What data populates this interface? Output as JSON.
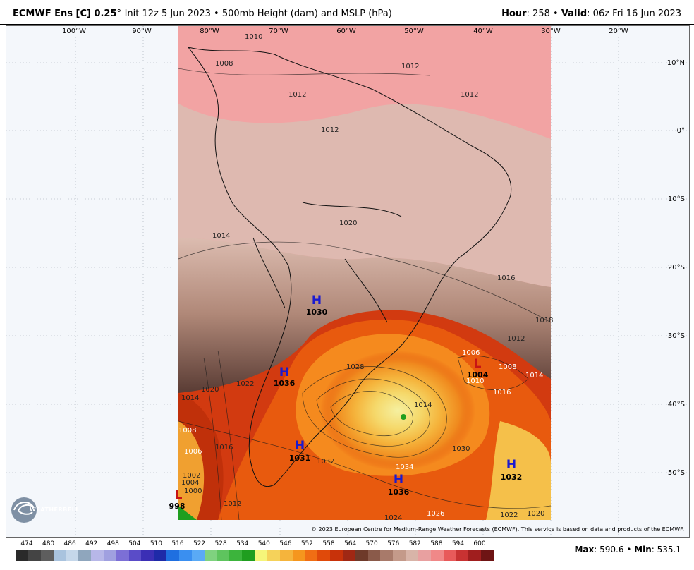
{
  "header": {
    "model": "ECMWF Ens [C] 0.25",
    "init": "Init 12z 5 Jun 2023 • 500mb Height (dam) and MSLP (hPa)",
    "hour_label": "Hour",
    "hour_value": ": 258 • ",
    "valid_label": "Valid",
    "valid_value": ": 06z Fri 16 Jun 2023"
  },
  "map": {
    "lon_labels": [
      "100°W",
      "90°W",
      "80°W",
      "70°W",
      "60°W",
      "50°W",
      "40°W",
      "30°W",
      "20°W"
    ],
    "lat_labels": [
      "10°N",
      "0°",
      "10°S",
      "20°S",
      "30°S",
      "40°S",
      "50°S"
    ],
    "pressure_centers": [
      {
        "letter": "H",
        "value": "1030"
      },
      {
        "letter": "H",
        "value": "1036"
      },
      {
        "letter": "H",
        "value": "1031"
      },
      {
        "letter": "H",
        "value": "1036"
      },
      {
        "letter": "H",
        "value": "1032"
      },
      {
        "letter": "L",
        "value": "1004"
      },
      {
        "letter": "L",
        "value": "998"
      }
    ],
    "contour_labels": [
      "1010",
      "1008",
      "1012",
      "1012",
      "1012",
      "1012",
      "1014",
      "1020",
      "1016",
      "1018",
      "1012",
      "1006",
      "1008",
      "1014",
      "1010",
      "1016",
      "1014",
      "1022",
      "1020",
      "1014",
      "1008",
      "1006",
      "1016",
      "1032",
      "1028",
      "1030",
      "1034",
      "1024",
      "1026",
      "1022",
      "1020",
      "1012",
      "1004",
      "1002",
      "1000"
    ]
  },
  "copyright": "© 2023 European Centre for Medium-Range Weather Forecasts (ECMWF). This service is based on data and products of the ECMWF.",
  "logo_text": "WEATHERBELL",
  "legend": {
    "labels": [
      "474",
      "480",
      "486",
      "492",
      "498",
      "504",
      "510",
      "516",
      "522",
      "528",
      "534",
      "540",
      "546",
      "552",
      "558",
      "564",
      "570",
      "576",
      "582",
      "588",
      "594",
      "600"
    ],
    "colors": [
      "#2a2a2a",
      "#444444",
      "#5e5e5e",
      "#a9c3de",
      "#c5d7ea",
      "#8fa6bd",
      "#b7b7e8",
      "#a0a0e0",
      "#7c6fd6",
      "#5a4cc8",
      "#3b2fb5",
      "#1e2aa8",
      "#1f6fe0",
      "#3a8ff0",
      "#5aaaf5",
      "#7fd27f",
      "#5ec45e",
      "#3cb43c",
      "#1f9e1f",
      "#f5f57a",
      "#f5d25a",
      "#f5b43c",
      "#f5961e",
      "#f06e14",
      "#e04a0a",
      "#c8320a",
      "#a02814",
      "#6e3a2a",
      "#8a5a4a",
      "#a87a6a",
      "#c49a8a",
      "#d8b4a8",
      "#e8a0a0",
      "#f08888",
      "#e85a5a",
      "#c83232",
      "#a01e1e",
      "#6e1414"
    ]
  },
  "stats": {
    "max_label": "Max",
    "max_value": ": 590.6 • ",
    "min_label": "Min",
    "min_value": ": 535.1"
  }
}
